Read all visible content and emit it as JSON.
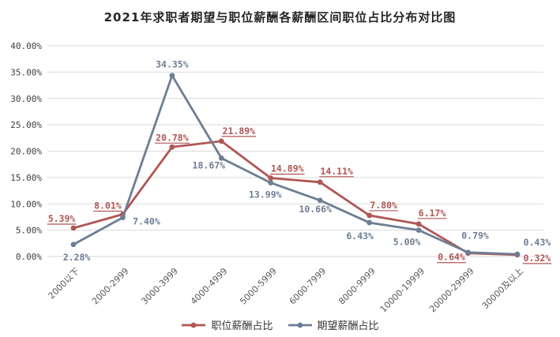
{
  "chart_data": {
    "type": "line",
    "title": "2021年求职者期望与职位薪酬各薪酬区间职位占比分布对比图",
    "categories": [
      "2000以下",
      "2000-2999",
      "3000-3999",
      "4000-4999",
      "5000-5999",
      "6000-7999",
      "8000-9999",
      "10000-19999",
      "20000-29999",
      "30000及以上"
    ],
    "series": [
      {
        "name": "职位薪酬占比",
        "color": "#b05654",
        "values": [
          5.39,
          8.01,
          20.78,
          21.89,
          14.89,
          14.11,
          7.8,
          6.17,
          0.64,
          0.32
        ],
        "labels": [
          "5.39%",
          "8.01%",
          "20.78%",
          "21.89%",
          "14.89%",
          "14.11%",
          "7.80%",
          "6.17%",
          "0.64%",
          "0.32%"
        ],
        "label_underline": true
      },
      {
        "name": "期望薪酬占比",
        "color": "#6d7e94",
        "values": [
          2.28,
          7.4,
          34.35,
          18.67,
          13.99,
          10.66,
          6.43,
          5.0,
          0.79,
          0.43
        ],
        "labels": [
          "2.28%",
          "7.40%",
          "34.35%",
          "18.67%",
          "13.99%",
          "10.66%",
          "6.43%",
          "5.00%",
          "0.79%",
          "0.43%"
        ],
        "label_underline": false
      }
    ],
    "y_ticks": [
      "40.00%",
      "35.00%",
      "30.00%",
      "25.00%",
      "20.00%",
      "15.00%",
      "10.00%",
      "5.00%",
      "0.00%"
    ],
    "ylim": [
      0,
      40
    ],
    "grid": true,
    "legend_position": "bottom",
    "colors": {
      "gridline": "#d9d9d9",
      "y_tick_text": "#3f3f3f",
      "x_tick_text": "#595959",
      "title_text": "#262626"
    }
  }
}
